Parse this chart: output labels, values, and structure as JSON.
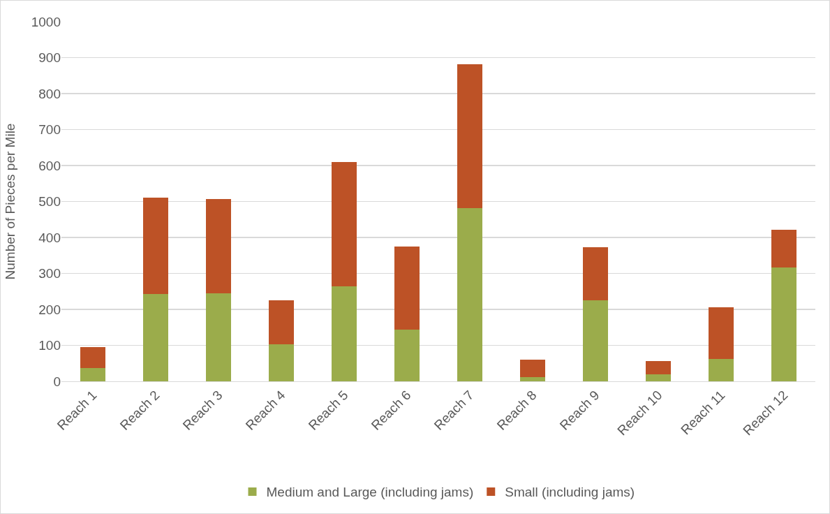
{
  "chart_data": {
    "type": "bar",
    "stacked": true,
    "ylabel": "Number of Pieces per Mile",
    "categories": [
      "Reach 1",
      "Reach 2",
      "Reach 3",
      "Reach 4",
      "Reach 5",
      "Reach 6",
      "Reach 7",
      "Reach 8",
      "Reach 9",
      "Reach 10",
      "Reach 11",
      "Reach 12"
    ],
    "series": [
      {
        "name": "Medium and Large (including jams)",
        "color": "#9bac4b",
        "values": [
          37,
          242,
          245,
          102,
          265,
          143,
          482,
          12,
          225,
          20,
          63,
          317
        ]
      },
      {
        "name": "Small (including jams)",
        "color": "#bd5226",
        "values": [
          58,
          268,
          262,
          123,
          345,
          232,
          400,
          48,
          147,
          37,
          142,
          105
        ]
      }
    ],
    "ylim": [
      0,
      1000
    ],
    "yticks": [
      0,
      100,
      200,
      300,
      400,
      500,
      600,
      700,
      800,
      900,
      1000
    ],
    "grid": "y",
    "legend": "bottom"
  }
}
